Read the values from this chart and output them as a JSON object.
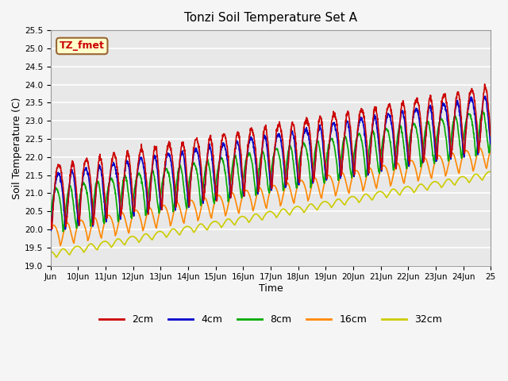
{
  "title": "Tonzi Soil Temperature Set A",
  "xlabel": "Time",
  "ylabel": "Soil Temperature (C)",
  "ylim": [
    19.0,
    25.5
  ],
  "xlim": [
    0,
    16
  ],
  "annotation_text": "TZ_fmet",
  "annotation_bg": "#ffffcc",
  "annotation_border": "#996633",
  "annotation_text_color": "#cc0000",
  "background_color": "#e8e8e8",
  "fig_bg_color": "#f5f5f5",
  "grid_color": "#ffffff",
  "xtick_labels": [
    "Jun",
    "10Jun",
    "11Jun",
    "12Jun",
    "13Jun",
    "14Jun",
    "15Jun",
    "16Jun",
    "17Jun",
    "18Jun",
    "19Jun",
    "20Jun",
    "21Jun",
    "22Jun",
    "23Jun",
    "24Jun",
    "25"
  ],
  "ytick_vals": [
    19.0,
    19.5,
    20.0,
    20.5,
    21.0,
    21.5,
    22.0,
    22.5,
    23.0,
    23.5,
    24.0,
    24.5,
    25.0,
    25.5
  ],
  "legend_labels": [
    "2cm",
    "4cm",
    "8cm",
    "16cm",
    "32cm"
  ],
  "line_colors": [
    "#cc0000",
    "#0000cc",
    "#00aa00",
    "#ff8800",
    "#cccc00"
  ],
  "line_width": 1.2
}
